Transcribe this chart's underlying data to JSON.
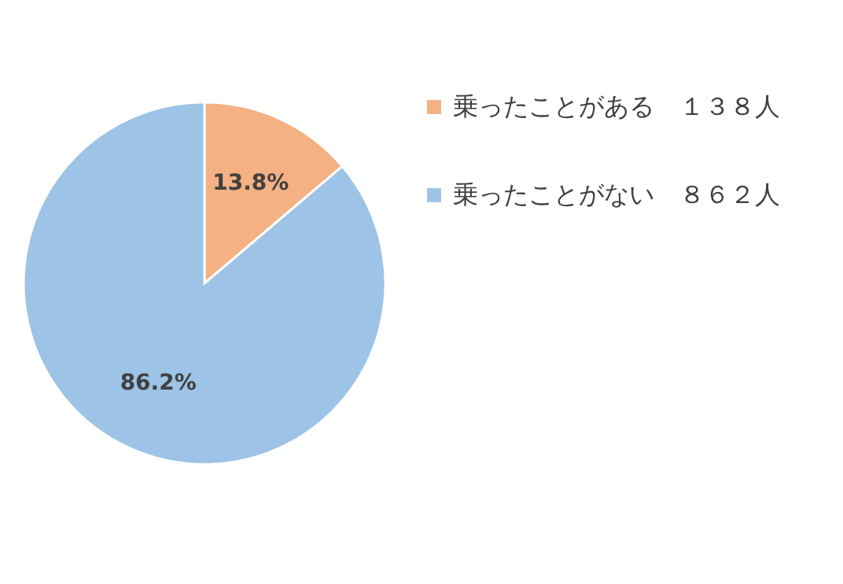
{
  "chart_data": {
    "type": "pie",
    "categories": [
      "乗ったことがある　１３８人",
      "乗ったことがない　８６２人"
    ],
    "values": [
      13.8,
      86.2
    ],
    "colors": [
      "#f4b183",
      "#9dc3e6"
    ],
    "value_labels": [
      "13.8%",
      "86.2%"
    ],
    "legend": "right"
  }
}
